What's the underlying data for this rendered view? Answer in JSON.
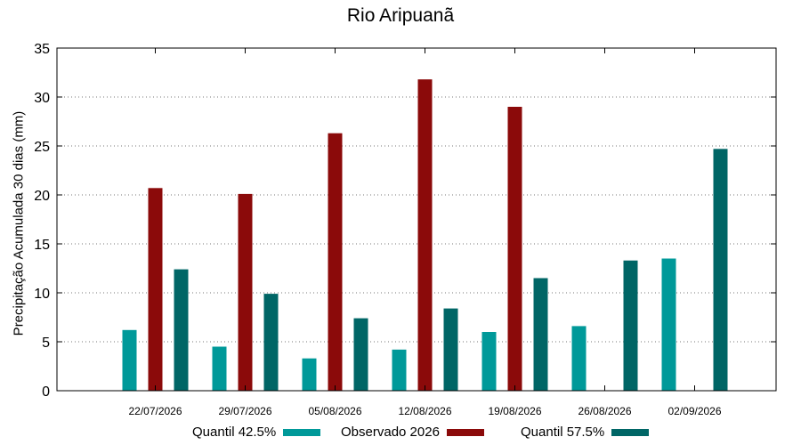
{
  "chart_data": {
    "type": "bar",
    "title": "Rio Aripuanã",
    "xlabel": "",
    "ylabel": "Precipitação Acumulada 30 dias (mm)",
    "ylim": [
      0,
      35
    ],
    "yticks": [
      0,
      5,
      10,
      15,
      20,
      25,
      30,
      35
    ],
    "grid": true,
    "legend_position": "bottom",
    "categories": [
      "22/07/2026",
      "29/07/2026",
      "05/08/2026",
      "12/08/2026",
      "19/08/2026",
      "26/08/2026",
      "02/09/2026"
    ],
    "series": [
      {
        "name": "Quantil 42.5%",
        "color": "#009999",
        "values": [
          6.2,
          4.5,
          3.3,
          4.2,
          6.0,
          6.6,
          13.5
        ]
      },
      {
        "name": "Observado 2026",
        "color": "#8b0a0a",
        "values": [
          20.7,
          20.1,
          26.3,
          31.8,
          29.0,
          null,
          null
        ]
      },
      {
        "name": "Quantil 57.5%",
        "color": "#006666",
        "values": [
          12.4,
          9.9,
          7.4,
          8.4,
          11.5,
          13.3,
          24.7
        ]
      }
    ]
  }
}
